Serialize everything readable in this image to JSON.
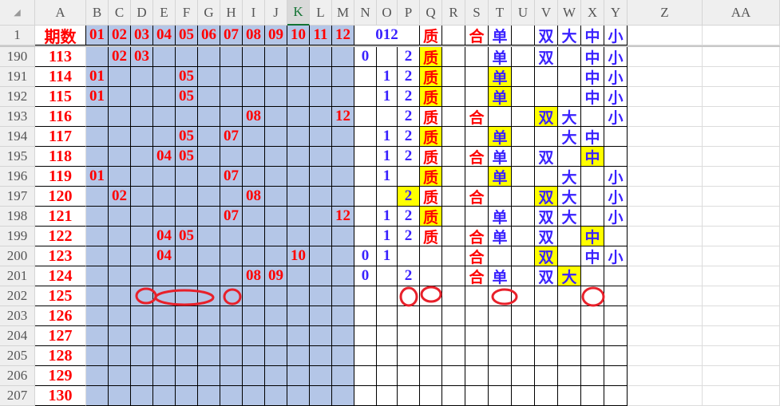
{
  "columns": [
    "A",
    "B",
    "C",
    "D",
    "E",
    "F",
    "G",
    "H",
    "I",
    "J",
    "K",
    "L",
    "M",
    "N",
    "O",
    "P",
    "Q",
    "R",
    "S",
    "T",
    "U",
    "V",
    "W",
    "X",
    "Y",
    "Z",
    "AA"
  ],
  "selected_column": "K",
  "colors": {
    "number_fill": "#B4C6E7",
    "highlight": "#FFFF00",
    "red_text": "#FF0000",
    "blue_text": "#3A22FF",
    "annotation": "#E8202A"
  },
  "header_row": {
    "row": "1",
    "A": "期数",
    "B": "01",
    "C": "02",
    "D": "03",
    "E": "04",
    "F": "05",
    "G": "06",
    "H": "07",
    "I": "08",
    "J": "09",
    "K": "10",
    "L": "11",
    "M": "12",
    "NOP": "012",
    "Q": "质",
    "S": "合",
    "T": "单",
    "V": "双",
    "W": "大",
    "X": "中",
    "Y": "小"
  },
  "rows": [
    {
      "row": "190",
      "A": "113",
      "C": "02",
      "D": "03",
      "N": "0",
      "P": "2",
      "Q": "质",
      "T": "单",
      "V": "双",
      "X": "中",
      "Y": "小",
      "hl": [
        "Q"
      ]
    },
    {
      "row": "191",
      "A": "114",
      "B": "01",
      "F": "05",
      "O": "1",
      "P": "2",
      "Q": "质",
      "T": "单",
      "X": "中",
      "Y": "小",
      "hl": [
        "Q",
        "T"
      ]
    },
    {
      "row": "192",
      "A": "115",
      "B": "01",
      "F": "05",
      "O": "1",
      "P": "2",
      "Q": "质",
      "T": "单",
      "X": "中",
      "Y": "小",
      "hl": [
        "Q",
        "T"
      ]
    },
    {
      "row": "193",
      "A": "116",
      "I": "08",
      "M": "12",
      "P": "2",
      "Q": "质",
      "S": "合",
      "V": "双",
      "W": "大",
      "Y": "小",
      "hl": [
        "V"
      ]
    },
    {
      "row": "194",
      "A": "117",
      "F": "05",
      "H": "07",
      "O": "1",
      "P": "2",
      "Q": "质",
      "T": "单",
      "W": "大",
      "X": "中",
      "hl": [
        "Q",
        "T"
      ]
    },
    {
      "row": "195",
      "A": "118",
      "E": "04",
      "F": "05",
      "O": "1",
      "P": "2",
      "Q": "质",
      "S": "合",
      "T": "单",
      "V": "双",
      "X": "中",
      "hl": [
        "X"
      ]
    },
    {
      "row": "196",
      "A": "119",
      "B": "01",
      "H": "07",
      "O": "1",
      "Q": "质",
      "T": "单",
      "W": "大",
      "Y": "小",
      "hl": [
        "Q",
        "T"
      ]
    },
    {
      "row": "197",
      "A": "120",
      "C": "02",
      "I": "08",
      "P": "2",
      "Q": "质",
      "S": "合",
      "V": "双",
      "W": "大",
      "Y": "小",
      "hl": [
        "P",
        "V"
      ]
    },
    {
      "row": "198",
      "A": "121",
      "H": "07",
      "M": "12",
      "O": "1",
      "P": "2",
      "Q": "质",
      "T": "单",
      "V": "双",
      "W": "大",
      "Y": "小",
      "hl": [
        "Q"
      ]
    },
    {
      "row": "199",
      "A": "122",
      "E": "04",
      "F": "05",
      "O": "1",
      "P": "2",
      "Q": "质",
      "S": "合",
      "T": "单",
      "V": "双",
      "X": "中",
      "hl": [
        "X"
      ]
    },
    {
      "row": "200",
      "A": "123",
      "E": "04",
      "K": "10",
      "N": "0",
      "O": "1",
      "S": "合",
      "V": "双",
      "X": "中",
      "Y": "小",
      "hl": [
        "V"
      ]
    },
    {
      "row": "201",
      "A": "124",
      "I": "08",
      "J": "09",
      "N": "0",
      "P": "2",
      "S": "合",
      "T": "单",
      "V": "双",
      "W": "大",
      "hl": [
        "W"
      ]
    },
    {
      "row": "202",
      "A": "125",
      "hl": []
    },
    {
      "row": "203",
      "A": "126",
      "hl": []
    },
    {
      "row": "204",
      "A": "127",
      "hl": []
    },
    {
      "row": "205",
      "A": "128",
      "hl": []
    },
    {
      "row": "206",
      "A": "129",
      "hl": []
    },
    {
      "row": "207",
      "A": "130",
      "hl": []
    }
  ]
}
